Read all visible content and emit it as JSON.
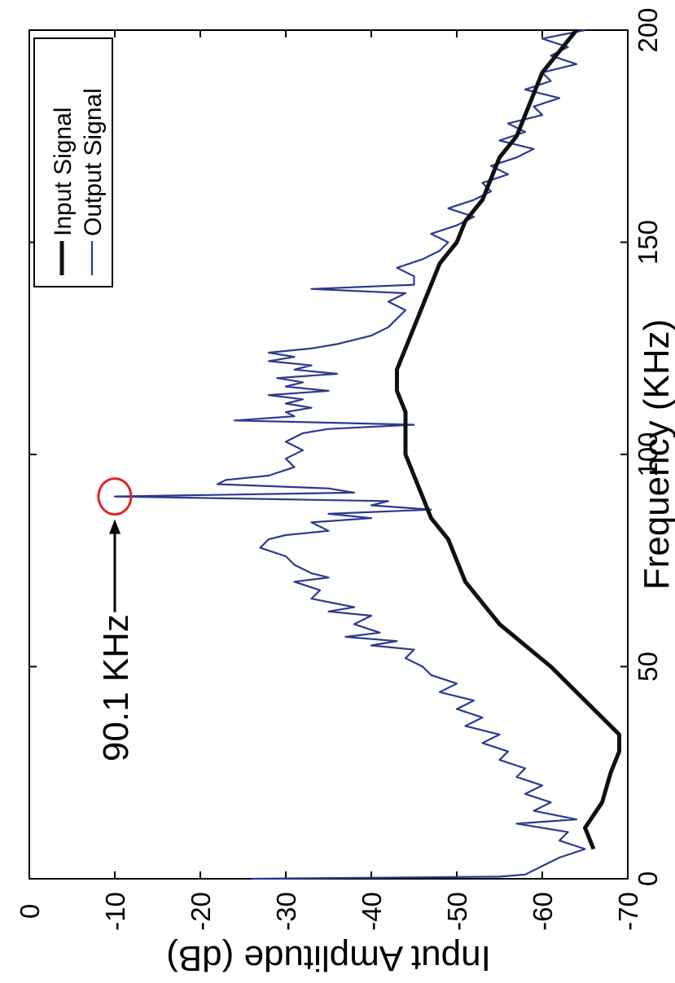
{
  "chart_data": {
    "type": "line",
    "xlabel": "Frequency (KHz)",
    "ylabel": "Input Amplitude (dB)",
    "xlim": [
      0,
      200
    ],
    "ylim": [
      -70,
      0
    ],
    "x_ticks": [
      "0",
      "50",
      "100",
      "150",
      "200"
    ],
    "y_ticks": [
      "0",
      "-10",
      "-20",
      "-30",
      "-40",
      "-50",
      "-60",
      "-70"
    ],
    "orientation": "rotated-90-ccw",
    "grid": false,
    "legend_position": "top-left",
    "annotation": {
      "text": "90.1 KHz",
      "x": 90.1,
      "y": -10
    },
    "series": [
      {
        "name": "Input Signal",
        "color": "#111111",
        "points": [
          [
            7,
            -66
          ],
          [
            12,
            -65
          ],
          [
            18,
            -67
          ],
          [
            25,
            -68
          ],
          [
            30,
            -69
          ],
          [
            34,
            -69
          ],
          [
            38,
            -67
          ],
          [
            42,
            -65
          ],
          [
            46,
            -63
          ],
          [
            50,
            -61
          ],
          [
            55,
            -58
          ],
          [
            60,
            -55
          ],
          [
            65,
            -53
          ],
          [
            70,
            -51
          ],
          [
            75,
            -50
          ],
          [
            80,
            -49
          ],
          [
            85,
            -47
          ],
          [
            90,
            -46
          ],
          [
            95,
            -45
          ],
          [
            100,
            -44
          ],
          [
            105,
            -44
          ],
          [
            110,
            -44
          ],
          [
            115,
            -43
          ],
          [
            120,
            -43
          ],
          [
            125,
            -44
          ],
          [
            130,
            -45
          ],
          [
            135,
            -46
          ],
          [
            140,
            -47
          ],
          [
            145,
            -48
          ],
          [
            150,
            -50
          ],
          [
            155,
            -51
          ],
          [
            160,
            -53
          ],
          [
            165,
            -54
          ],
          [
            170,
            -55
          ],
          [
            175,
            -57
          ],
          [
            180,
            -58
          ],
          [
            185,
            -59
          ],
          [
            190,
            -60
          ],
          [
            195,
            -62
          ],
          [
            200,
            -64
          ]
        ]
      },
      {
        "name": "Output Signal",
        "color": "#2b3a8f",
        "points": [
          [
            0,
            -26
          ],
          [
            0.5,
            -55
          ],
          [
            1,
            -58
          ],
          [
            3,
            -60
          ],
          [
            5,
            -62
          ],
          [
            7,
            -65
          ],
          [
            9,
            -62
          ],
          [
            11,
            -63
          ],
          [
            13,
            -57
          ],
          [
            14,
            -64
          ],
          [
            16,
            -59
          ],
          [
            18,
            -61
          ],
          [
            20,
            -58
          ],
          [
            22,
            -60
          ],
          [
            24,
            -57
          ],
          [
            26,
            -58
          ],
          [
            28,
            -55
          ],
          [
            30,
            -56
          ],
          [
            32,
            -53
          ],
          [
            34,
            -55
          ],
          [
            36,
            -51
          ],
          [
            38,
            -53
          ],
          [
            40,
            -50
          ],
          [
            42,
            -52
          ],
          [
            44,
            -48
          ],
          [
            46,
            -50
          ],
          [
            48,
            -47
          ],
          [
            50,
            -46
          ],
          [
            52,
            -44
          ],
          [
            54,
            -45
          ],
          [
            55,
            -40
          ],
          [
            56,
            -43
          ],
          [
            57,
            -37
          ],
          [
            58,
            -41
          ],
          [
            60,
            -38
          ],
          [
            62,
            -40
          ],
          [
            63,
            -35
          ],
          [
            64,
            -38
          ],
          [
            66,
            -33
          ],
          [
            68,
            -34
          ],
          [
            70,
            -31
          ],
          [
            71,
            -35
          ],
          [
            72,
            -33
          ],
          [
            74,
            -31
          ],
          [
            76,
            -30
          ],
          [
            78,
            -27
          ],
          [
            80,
            -28
          ],
          [
            81,
            -30
          ],
          [
            82,
            -35
          ],
          [
            84,
            -33
          ],
          [
            85,
            -40
          ],
          [
            86,
            -35
          ],
          [
            87,
            -47
          ],
          [
            88,
            -40
          ],
          [
            89,
            -42
          ],
          [
            90.1,
            -10
          ],
          [
            91,
            -38
          ],
          [
            92,
            -35
          ],
          [
            93,
            -22
          ],
          [
            94,
            -23
          ],
          [
            95,
            -28
          ],
          [
            97,
            -31
          ],
          [
            99,
            -30
          ],
          [
            101,
            -32
          ],
          [
            103,
            -30
          ],
          [
            105,
            -32
          ],
          [
            106,
            -35
          ],
          [
            107,
            -45
          ],
          [
            108,
            -24
          ],
          [
            109,
            -31
          ],
          [
            110,
            -30
          ],
          [
            111,
            -33
          ],
          [
            112,
            -30
          ],
          [
            113,
            -32
          ],
          [
            114,
            -28
          ],
          [
            115,
            -35
          ],
          [
            116,
            -30
          ],
          [
            117,
            -32
          ],
          [
            118,
            -29
          ],
          [
            119,
            -36
          ],
          [
            120,
            -31
          ],
          [
            121,
            -33
          ],
          [
            122,
            -28
          ],
          [
            123,
            -31
          ],
          [
            124,
            -28
          ],
          [
            125,
            -33
          ],
          [
            126,
            -36
          ],
          [
            127,
            -38
          ],
          [
            128,
            -40
          ],
          [
            130,
            -42
          ],
          [
            132,
            -43
          ],
          [
            134,
            -44
          ],
          [
            136,
            -42
          ],
          [
            138,
            -44
          ],
          [
            139,
            -33
          ],
          [
            140,
            -45
          ],
          [
            142,
            -45
          ],
          [
            144,
            -43
          ],
          [
            146,
            -46
          ],
          [
            148,
            -48
          ],
          [
            150,
            -49
          ],
          [
            152,
            -47
          ],
          [
            154,
            -50
          ],
          [
            156,
            -52
          ],
          [
            158,
            -49
          ],
          [
            160,
            -52
          ],
          [
            162,
            -54
          ],
          [
            164,
            -53
          ],
          [
            166,
            -56
          ],
          [
            168,
            -54
          ],
          [
            170,
            -57
          ],
          [
            172,
            -59
          ],
          [
            174,
            -55
          ],
          [
            176,
            -58
          ],
          [
            178,
            -56
          ],
          [
            180,
            -60
          ],
          [
            182,
            -59
          ],
          [
            184,
            -62
          ],
          [
            186,
            -58
          ],
          [
            188,
            -61
          ],
          [
            190,
            -60
          ],
          [
            192,
            -64
          ],
          [
            194,
            -61
          ],
          [
            196,
            -63
          ],
          [
            198,
            -60
          ],
          [
            200,
            -65
          ]
        ]
      }
    ]
  }
}
